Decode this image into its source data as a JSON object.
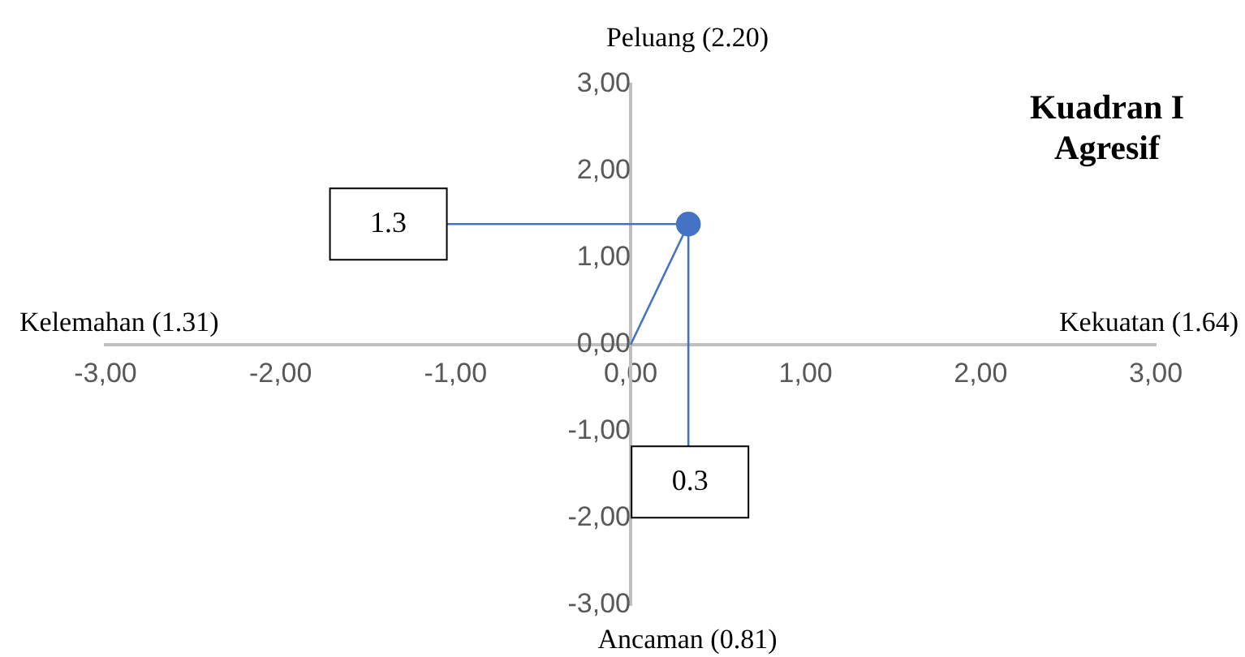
{
  "chart_data": {
    "type": "scatter",
    "series": [
      {
        "type": "line",
        "color": "#4472c4",
        "x": [
          0,
          0.33
        ],
        "values": [
          0,
          1.39
        ],
        "marker": "none"
      },
      {
        "type": "line",
        "color": "#4472c4",
        "x": [
          -1.05,
          0.33
        ],
        "values": [
          1.39,
          1.39
        ],
        "marker": "none"
      },
      {
        "type": "line",
        "color": "#4472c4",
        "x": [
          0.33,
          0.33
        ],
        "values": [
          1.39,
          -1.17
        ],
        "marker": "none"
      },
      {
        "color": "#4472c4",
        "x": [
          0.33
        ],
        "values": [
          1.39
        ],
        "marker": "circle"
      }
    ],
    "xlim": [
      -3,
      3
    ],
    "xticks": [
      {
        "value": -3,
        "label": "-3,00"
      },
      {
        "value": -2,
        "label": "-2,00"
      },
      {
        "value": -1,
        "label": "-1,00"
      },
      {
        "value": 0,
        "label": "0,00"
      },
      {
        "value": 1,
        "label": "1,00"
      },
      {
        "value": 2,
        "label": "2,00"
      },
      {
        "value": 3,
        "label": "3,00"
      }
    ],
    "ylim": [
      -3,
      3
    ],
    "yticks": [
      {
        "value": -3,
        "label": "-3,00"
      },
      {
        "value": -2,
        "label": "-2,00"
      },
      {
        "value": -1,
        "label": "-1,00"
      },
      {
        "value": 0,
        "label": "0,00"
      },
      {
        "value": 1,
        "label": "1,00"
      },
      {
        "value": 2,
        "label": "2,00"
      },
      {
        "value": 3,
        "label": "3,00"
      }
    ],
    "grid": false,
    "legend": false,
    "annotations": [
      "Peluang (2.20)",
      "Ancaman (0.81)",
      "Kelemahan (1.31)",
      "Kekuatan (1.64)",
      "Kuadran I\nAgresif",
      "1.3",
      "0.3"
    ]
  }
}
